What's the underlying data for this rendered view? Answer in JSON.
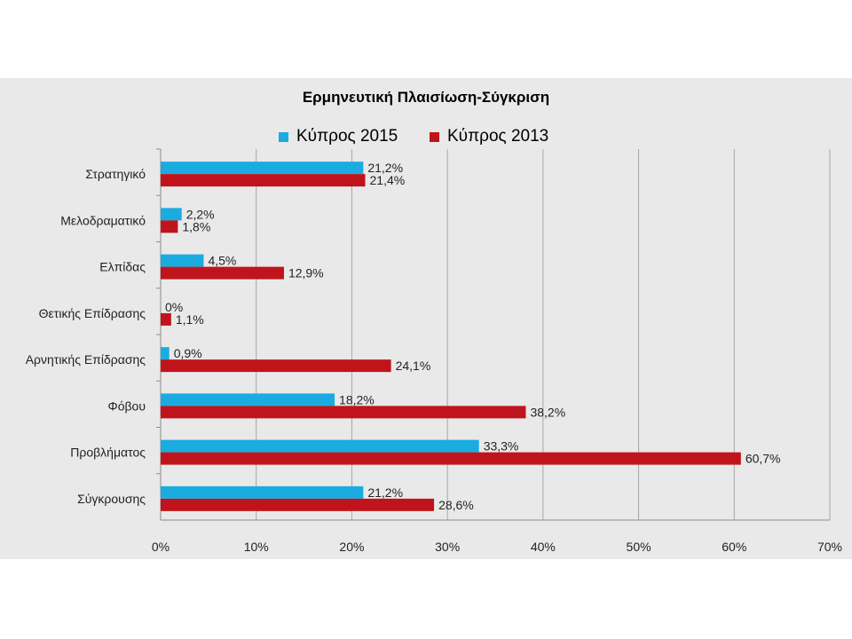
{
  "chart_data": {
    "type": "bar",
    "orientation": "horizontal",
    "title": "Ερμηνευτική Πλαισίωση-Σύγκριση",
    "categories": [
      "Στρατηγικό",
      "Μελοδραματικό",
      "Ελπίδας",
      "Θετικής Επίδρασης",
      "Αρνητικής Επίδρασης",
      "Φόβου",
      "Προβλήματος",
      "Σύγκρουσης"
    ],
    "series": [
      {
        "name": "Κύπρος 2015",
        "color": "#1aace0",
        "values": [
          21.2,
          2.2,
          4.5,
          0,
          0.9,
          18.2,
          33.3,
          21.2
        ],
        "labels": [
          "21,2%",
          "2,2%",
          "4,5%",
          "0%",
          "0,9%",
          "18,2%",
          "33,3%",
          "21,2%"
        ]
      },
      {
        "name": "Κύπρος 2013",
        "color": "#c0141c",
        "values": [
          21.4,
          1.8,
          12.9,
          1.1,
          24.1,
          38.2,
          60.7,
          28.6
        ],
        "labels": [
          "21,4%",
          "1,8%",
          "12,9%",
          "1,1%",
          "24,1%",
          "38,2%",
          "60,7%",
          "28,6%"
        ]
      }
    ],
    "xlim": [
      0,
      70
    ],
    "xticks": [
      0,
      10,
      20,
      30,
      40,
      50,
      60,
      70
    ],
    "xtick_labels": [
      "0%",
      "10%",
      "20%",
      "30%",
      "40%",
      "50%",
      "60%",
      "70%"
    ],
    "grid": "vertical",
    "legend_position": "top"
  }
}
